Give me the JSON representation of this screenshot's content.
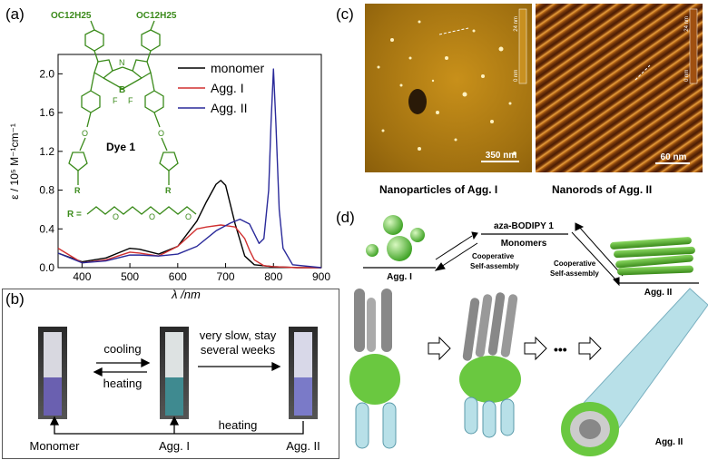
{
  "panels": {
    "a": "(a)",
    "b": "(b)",
    "c": "(c)",
    "d": "(d)"
  },
  "molecule": {
    "top_left_sub": "OC12H25",
    "top_right_sub": "OC12H25",
    "dye_label": "Dye 1",
    "r_label": "R =",
    "boron_label": "B",
    "fluorine": "F",
    "nitrogen": "N",
    "r_sub": "R",
    "o_atom": "O"
  },
  "chart_data": {
    "type": "line",
    "xlabel": "λ /nm",
    "ylabel": "ε / 10⁵ M⁻¹cm⁻¹",
    "xlim": [
      350,
      900
    ],
    "ylim": [
      0,
      2.2
    ],
    "x_ticks": [
      "400",
      "500",
      "600",
      "700",
      "800",
      "900"
    ],
    "y_ticks": [
      "0.0",
      "0.4",
      "0.8",
      "1.2",
      "1.6",
      "2.0"
    ],
    "legend_position": "top-right",
    "series": [
      {
        "name": "monomer",
        "color": "#000000",
        "x": [
          350,
          400,
          450,
          500,
          520,
          560,
          600,
          640,
          660,
          680,
          690,
          700,
          720,
          740,
          760,
          800,
          850,
          900
        ],
        "y": [
          0.15,
          0.06,
          0.1,
          0.2,
          0.19,
          0.14,
          0.22,
          0.48,
          0.68,
          0.86,
          0.9,
          0.85,
          0.45,
          0.12,
          0.03,
          0.01,
          0.0,
          0.0
        ]
      },
      {
        "name": "Agg. I",
        "color": "#d03030",
        "x": [
          350,
          400,
          450,
          500,
          520,
          560,
          600,
          640,
          660,
          690,
          720,
          740,
          750,
          760,
          780,
          800,
          850,
          900
        ],
        "y": [
          0.2,
          0.05,
          0.08,
          0.16,
          0.15,
          0.12,
          0.22,
          0.4,
          0.42,
          0.44,
          0.42,
          0.3,
          0.18,
          0.08,
          0.02,
          0.01,
          0.0,
          0.0
        ]
      },
      {
        "name": "Agg. II",
        "color": "#2a2a9a",
        "x": [
          350,
          400,
          450,
          500,
          520,
          560,
          600,
          640,
          680,
          710,
          730,
          750,
          770,
          780,
          790,
          795,
          800,
          805,
          812,
          820,
          840,
          900
        ],
        "y": [
          0.15,
          0.05,
          0.07,
          0.13,
          0.13,
          0.12,
          0.14,
          0.22,
          0.38,
          0.46,
          0.5,
          0.45,
          0.25,
          0.3,
          0.8,
          1.5,
          2.05,
          1.5,
          0.6,
          0.2,
          0.03,
          0.0
        ]
      }
    ]
  },
  "panel_b": {
    "cooling": "cooling",
    "heating_top": "heating",
    "slow_line1": "very slow, stay",
    "slow_line2": "several weeks",
    "heating_bottom": "heating",
    "monomer": "Monomer",
    "agg1": "Agg. I",
    "agg2": "Agg. II"
  },
  "panel_c": {
    "left_scale": "350 nm",
    "right_scale": "60 nm",
    "left_bar_top": "24 nm",
    "left_bar_bottom": "0 nm",
    "right_bar_top": "24 nm",
    "right_bar_bottom": "0 nm",
    "left_caption": "Nanoparticles of Agg. I",
    "right_caption": "Nanorods of Agg. II"
  },
  "panel_d": {
    "compound": "aza-BODIPY 1",
    "monomers": "Monomers",
    "coop_left1": "Cooperative",
    "coop_left2": "Self-assembly",
    "coop_right1": "Cooperative",
    "coop_right2": "Self-assembly",
    "agg1": "Agg. I",
    "agg2_top": "Agg. II",
    "agg2_bottom": "Agg. II",
    "dots": "•••"
  },
  "colors": {
    "molecule_green": "#3a8a1a",
    "afm_left": "#b8860b",
    "afm_right": "#7a3a0a",
    "green_rod": "#5cb82a"
  }
}
